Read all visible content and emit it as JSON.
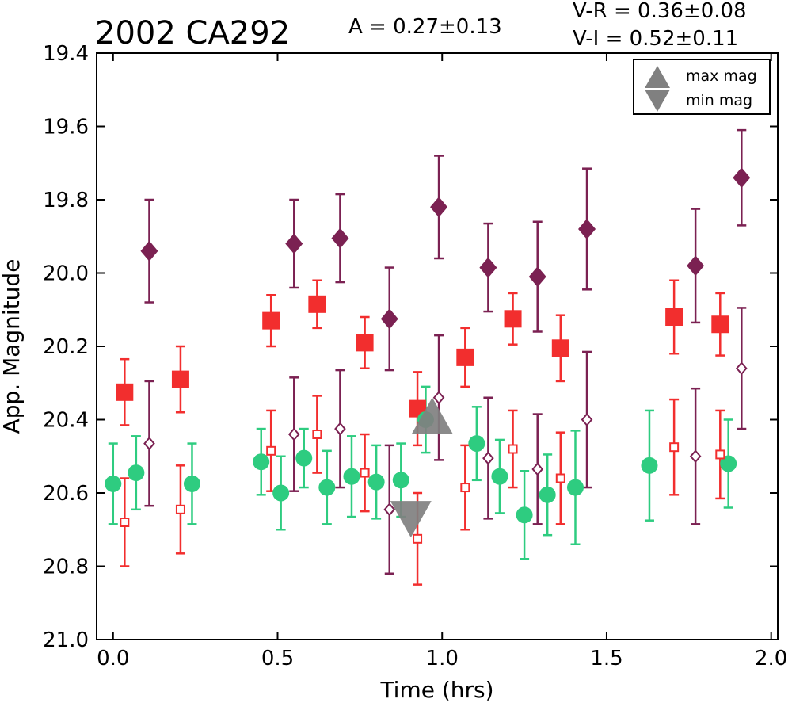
{
  "chart_data": {
    "type": "scatter",
    "title": "2002 CA292",
    "amplitude_text": "A  = 0.27±0.13",
    "color_text_1": "V-R = 0.36±0.08",
    "color_text_2": "V-I  = 0.52±0.11",
    "xlabel": "Time (hrs)",
    "ylabel": "App. Magnitude",
    "xlim": [
      -0.05,
      2.02
    ],
    "ylim": [
      21.0,
      19.4
    ],
    "y_inverted": true,
    "x_ticks": [
      "0.0",
      "0.5",
      "1.0",
      "1.5",
      "2.0"
    ],
    "x_tick_values": [
      0.0,
      0.5,
      1.0,
      1.5,
      2.0
    ],
    "y_ticks": [
      "19.4",
      "19.6",
      "19.8",
      "20.0",
      "20.2",
      "20.4",
      "20.6",
      "20.8",
      "21.0"
    ],
    "y_tick_values": [
      19.4,
      19.6,
      19.8,
      20.0,
      20.2,
      20.4,
      20.6,
      20.8,
      21.0
    ],
    "grid": false,
    "legend": {
      "placement": "top-right",
      "entries": [
        {
          "label": "max mag",
          "marker": "triangle-up",
          "color": "#808080"
        },
        {
          "label": "min mag",
          "marker": "triangle-down",
          "color": "#808080"
        }
      ]
    },
    "series": [
      {
        "marker": "diamond-filled",
        "color": "#7b2152",
        "points": [
          {
            "x": 0.11,
            "y": 19.94,
            "err": 0.14
          },
          {
            "x": 0.55,
            "y": 19.92,
            "err": 0.12
          },
          {
            "x": 0.69,
            "y": 19.905,
            "err": 0.12
          },
          {
            "x": 0.84,
            "y": 20.125,
            "err": 0.14
          },
          {
            "x": 0.99,
            "y": 19.82,
            "err": 0.14
          },
          {
            "x": 1.14,
            "y": 19.985,
            "err": 0.12
          },
          {
            "x": 1.29,
            "y": 20.01,
            "err": 0.15
          },
          {
            "x": 1.44,
            "y": 19.88,
            "err": 0.165
          },
          {
            "x": 1.77,
            "y": 19.98,
            "err": 0.155
          },
          {
            "x": 1.91,
            "y": 19.74,
            "err": 0.13
          }
        ]
      },
      {
        "marker": "square-filled",
        "color": "#f22e2e",
        "points": [
          {
            "x": 0.035,
            "y": 20.325,
            "err": 0.09
          },
          {
            "x": 0.205,
            "y": 20.29,
            "err": 0.09
          },
          {
            "x": 0.48,
            "y": 20.13,
            "err": 0.07
          },
          {
            "x": 0.62,
            "y": 20.085,
            "err": 0.065
          },
          {
            "x": 0.765,
            "y": 20.19,
            "err": 0.07
          },
          {
            "x": 0.925,
            "y": 20.37,
            "err": 0.1
          },
          {
            "x": 1.07,
            "y": 20.23,
            "err": 0.08
          },
          {
            "x": 1.215,
            "y": 20.125,
            "err": 0.07
          },
          {
            "x": 1.36,
            "y": 20.205,
            "err": 0.09
          },
          {
            "x": 1.705,
            "y": 20.12,
            "err": 0.1
          },
          {
            "x": 1.845,
            "y": 20.14,
            "err": 0.085
          }
        ]
      },
      {
        "marker": "circle-filled",
        "color": "#2ecc80",
        "points": [
          {
            "x": 0.0,
            "y": 20.575,
            "err": 0.11
          },
          {
            "x": 0.07,
            "y": 20.545,
            "err": 0.1
          },
          {
            "x": 0.24,
            "y": 20.575,
            "err": 0.11
          },
          {
            "x": 0.45,
            "y": 20.515,
            "err": 0.09
          },
          {
            "x": 0.51,
            "y": 20.6,
            "err": 0.1
          },
          {
            "x": 0.58,
            "y": 20.505,
            "err": 0.08
          },
          {
            "x": 0.65,
            "y": 20.585,
            "err": 0.1
          },
          {
            "x": 0.725,
            "y": 20.555,
            "err": 0.11
          },
          {
            "x": 0.8,
            "y": 20.57,
            "err": 0.1
          },
          {
            "x": 0.875,
            "y": 20.565,
            "err": 0.1
          },
          {
            "x": 0.95,
            "y": 20.4,
            "err": 0.09
          },
          {
            "x": 1.105,
            "y": 20.465,
            "err": 0.1
          },
          {
            "x": 1.175,
            "y": 20.555,
            "err": 0.1
          },
          {
            "x": 1.25,
            "y": 20.66,
            "err": 0.12
          },
          {
            "x": 1.32,
            "y": 20.605,
            "err": 0.11
          },
          {
            "x": 1.405,
            "y": 20.585,
            "err": 0.155
          },
          {
            "x": 1.63,
            "y": 20.525,
            "err": 0.15
          },
          {
            "x": 1.87,
            "y": 20.52,
            "err": 0.12
          }
        ]
      },
      {
        "marker": "square-open",
        "color": "#f22e2e",
        "points": [
          {
            "x": 0.035,
            "y": 20.68,
            "err": 0.12
          },
          {
            "x": 0.205,
            "y": 20.645,
            "err": 0.12
          },
          {
            "x": 0.48,
            "y": 20.485,
            "err": 0.11
          },
          {
            "x": 0.62,
            "y": 20.44,
            "err": 0.105
          },
          {
            "x": 0.765,
            "y": 20.545,
            "err": 0.105
          },
          {
            "x": 0.925,
            "y": 20.725,
            "err": 0.125
          },
          {
            "x": 1.07,
            "y": 20.585,
            "err": 0.115
          },
          {
            "x": 1.215,
            "y": 20.48,
            "err": 0.105
          },
          {
            "x": 1.36,
            "y": 20.56,
            "err": 0.125
          },
          {
            "x": 1.705,
            "y": 20.475,
            "err": 0.13
          },
          {
            "x": 1.845,
            "y": 20.495,
            "err": 0.12
          }
        ]
      },
      {
        "marker": "diamond-open",
        "color": "#7b2152",
        "points": [
          {
            "x": 0.11,
            "y": 20.465,
            "err": 0.17
          },
          {
            "x": 0.55,
            "y": 20.44,
            "err": 0.155
          },
          {
            "x": 0.69,
            "y": 20.425,
            "err": 0.16
          },
          {
            "x": 0.84,
            "y": 20.645,
            "err": 0.175
          },
          {
            "x": 0.99,
            "y": 20.34,
            "err": 0.17
          },
          {
            "x": 1.14,
            "y": 20.505,
            "err": 0.165
          },
          {
            "x": 1.29,
            "y": 20.535,
            "err": 0.15
          },
          {
            "x": 1.44,
            "y": 20.4,
            "err": 0.185
          },
          {
            "x": 1.77,
            "y": 20.5,
            "err": 0.185
          },
          {
            "x": 1.91,
            "y": 20.26,
            "err": 0.165
          }
        ]
      }
    ],
    "extrema": [
      {
        "label": "max mag",
        "marker": "triangle-up",
        "color": "#808080",
        "x": 0.97,
        "y": 20.4
      },
      {
        "label": "min mag",
        "marker": "triangle-down",
        "color": "#808080",
        "x": 0.905,
        "y": 20.665
      }
    ]
  }
}
